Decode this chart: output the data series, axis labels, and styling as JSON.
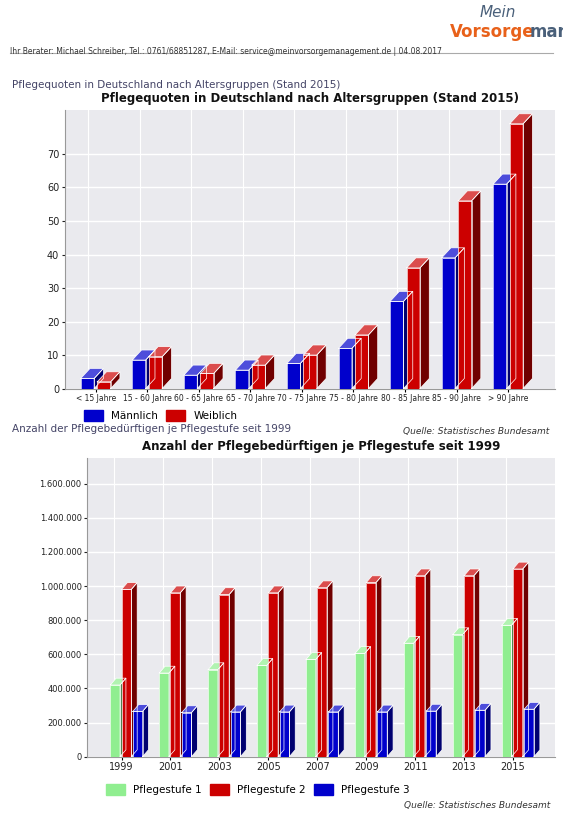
{
  "chart1_title": "Pflegequoten in Deutschland nach Altersgruppen (Stand 2015)",
  "chart1_categories": [
    "< 15 Jahre",
    "15 - 60 Jahre",
    "60 - 65 Jahre",
    "65 - 70 Jahre",
    "70 - 75 Jahre",
    "75 - 80 Jahre",
    "80 - 85 Jahre",
    "85 - 90 Jahre",
    "> 90 Jahre"
  ],
  "chart1_maennlich": [
    3.0,
    8.5,
    4.0,
    5.5,
    7.5,
    12.0,
    26.0,
    39.0,
    61.0
  ],
  "chart1_weiblich": [
    2.0,
    9.5,
    4.5,
    7.0,
    10.0,
    16.0,
    36.0,
    56.0,
    79.0
  ],
  "chart1_yticks": [
    0,
    10,
    20,
    30,
    40,
    50,
    60,
    70
  ],
  "chart1_ylim": [
    0,
    83
  ],
  "chart1_color_maennlich": "#0000CC",
  "chart1_color_weiblich": "#CC0000",
  "chart1_source": "Quelle: Statistisches Bundesamt",
  "chart1_legend_maennlich": "Männlich",
  "chart1_legend_weiblich": "Weiblich",
  "chart2_title": "Anzahl der Pflegebedürftigen je Pflegestufe seit 1999",
  "chart2_years": [
    "1999",
    "2001",
    "2003",
    "2005",
    "2007",
    "2009",
    "2011",
    "2013",
    "2015"
  ],
  "chart2_stufe1": [
    420000,
    490000,
    510000,
    535000,
    570000,
    605000,
    665000,
    715000,
    770000
  ],
  "chart2_stufe2": [
    980000,
    960000,
    950000,
    960000,
    990000,
    1020000,
    1060000,
    1060000,
    1100000
  ],
  "chart2_stufe3": [
    265000,
    258000,
    262000,
    262000,
    262000,
    262000,
    267000,
    272000,
    278000
  ],
  "chart2_color_stufe1": "#90EE90",
  "chart2_color_stufe2": "#CC0000",
  "chart2_color_stufe3": "#0000CC",
  "chart2_yticks": [
    0,
    200000,
    400000,
    600000,
    800000,
    1000000,
    1200000,
    1400000,
    1600000
  ],
  "chart2_ylim": [
    0,
    1750000
  ],
  "chart2_source": "Quelle: Statistisches Bundesamt",
  "chart2_legend_stufe1": "Pflegestufe 1",
  "chart2_legend_stufe2": "Pflegestufe 2",
  "chart2_legend_stufe3": "Pflegestufe 3",
  "header_contact": "Ihr Berater: Michael Schreiber, Tel.: 0761/68851287, E-Mail: service@meinvorsorgemanagement.de | 04.08.2017",
  "section1_label": "Pflegequoten in Deutschland nach Altersgruppen (Stand 2015)",
  "section2_label": "Anzahl der Pflegebedürftigen je Pflegestufe seit 1999",
  "bg_color": "#FFFFFF",
  "chart_bg": "#EAEAF0",
  "grid_color": "#D0D0D8"
}
